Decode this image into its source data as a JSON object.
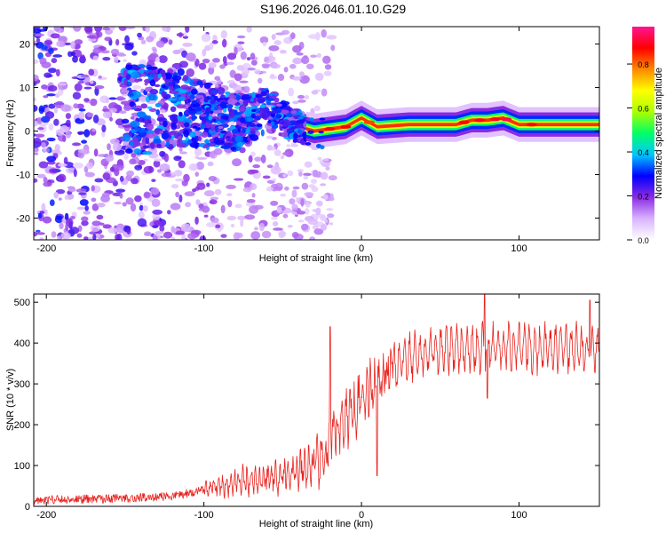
{
  "title": "S196.2026.046.01.10.G29",
  "chart_data": [
    {
      "type": "heatmap",
      "xlabel": "Height of straight line (km)",
      "ylabel": "Frequency (Hz)",
      "xlim": [
        -208,
        151
      ],
      "ylim": [
        -25,
        24
      ],
      "xticks": [
        -200,
        -100,
        0,
        100
      ],
      "yticks": [
        -20,
        -10,
        0,
        10,
        20
      ],
      "colorbar": {
        "label": "Normalized spectral amplitude",
        "range": [
          0,
          0.97
        ],
        "ticks": [
          0.0,
          0.2,
          0.4,
          0.6,
          0.8
        ],
        "tick_labels": [
          "0.0",
          "0.2",
          "0.4",
          "0.6",
          "0.8"
        ],
        "colormap": [
          "#ffffff",
          "#d9b3ff",
          "#8a2be2",
          "#0000ff",
          "#00c8ff",
          "#00ff66",
          "#aaff00",
          "#ffff00",
          "#ff8800",
          "#ff0000",
          "#ff1493"
        ]
      },
      "ridge": {
        "description_points_x": [
          -110,
          -80,
          -60,
          -40,
          -30,
          -20,
          -10,
          0,
          10,
          30,
          60,
          70,
          80,
          90,
          100,
          110,
          151
        ],
        "description_points_y": [
          5,
          2,
          5,
          1,
          0,
          0.5,
          1,
          3,
          1,
          1.5,
          1.5,
          2.5,
          2.5,
          3,
          1.5,
          1.5,
          1.5
        ],
        "peak_amplitude": 0.9
      }
    },
    {
      "type": "line",
      "xlabel": "Height of straight line (km)",
      "ylabel": "SNR (10 * v/v)",
      "xlim": [
        -208,
        151
      ],
      "ylim": [
        0,
        520
      ],
      "xticks": [
        -200,
        -100,
        0,
        100
      ],
      "yticks": [
        0,
        100,
        200,
        300,
        400,
        500
      ],
      "color": "#e8221d",
      "series": [
        {
          "name": "SNR",
          "trend_x": [
            -208,
            -150,
            -120,
            -100,
            -80,
            -60,
            -40,
            -25,
            -20,
            -15,
            -10,
            -5,
            0,
            10,
            20,
            30,
            40,
            60,
            80,
            100,
            120,
            151
          ],
          "trend_y": [
            15,
            20,
            25,
            40,
            60,
            70,
            85,
            110,
            150,
            190,
            220,
            240,
            270,
            310,
            340,
            360,
            375,
            380,
            385,
            385,
            380,
            380
          ],
          "spikes": [
            {
              "x": -20,
              "y": 440
            },
            {
              "x": 10,
              "y": 75
            },
            {
              "x": 78,
              "y": 520
            },
            {
              "x": 80,
              "y": 265
            },
            {
              "x": 145,
              "y": 505
            }
          ]
        }
      ]
    }
  ]
}
